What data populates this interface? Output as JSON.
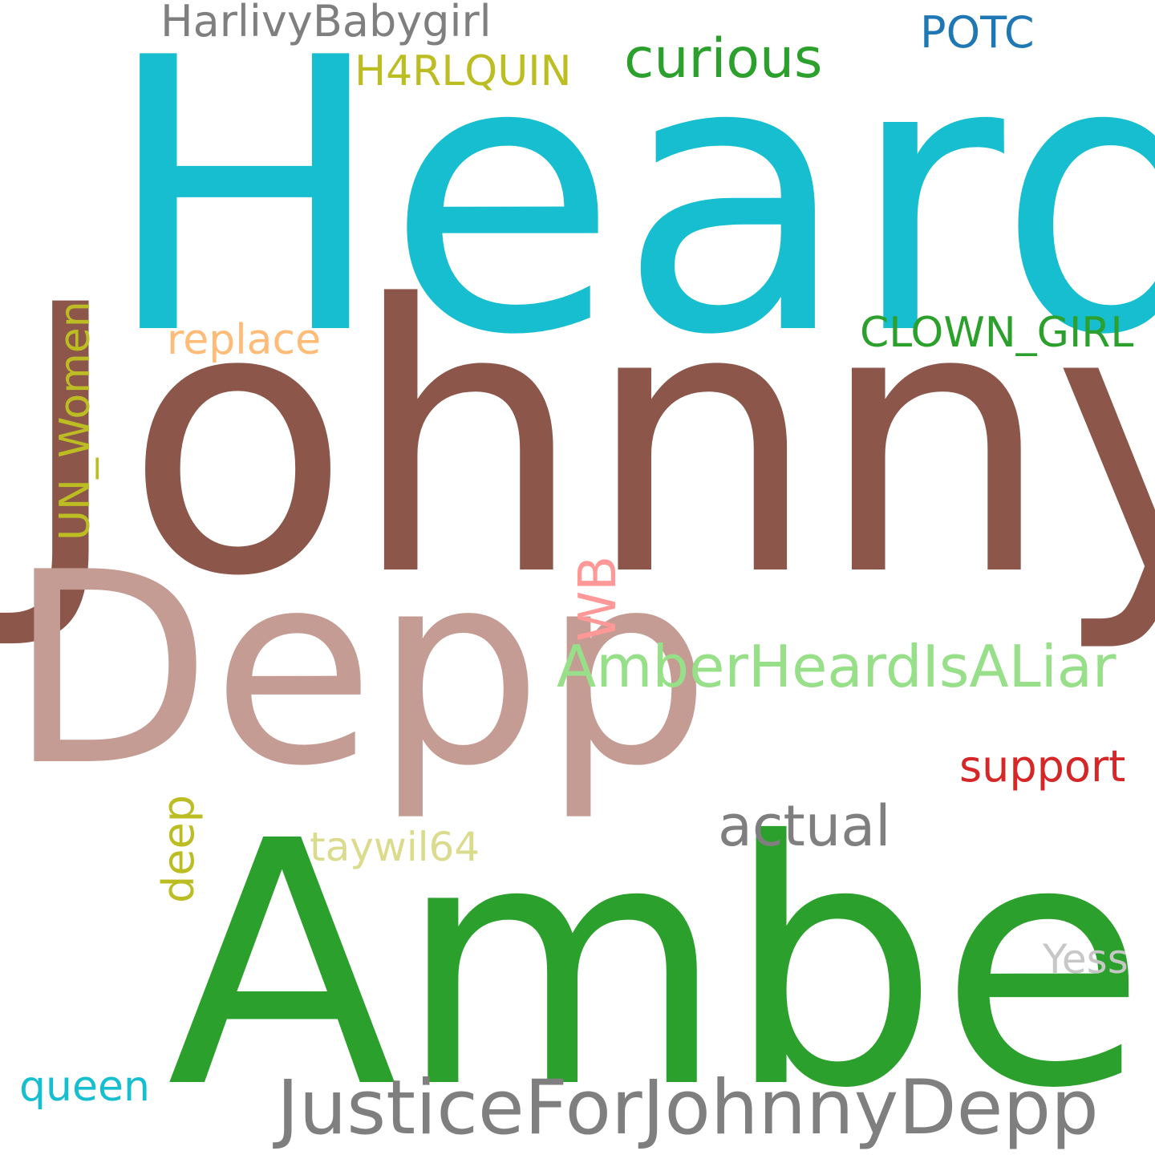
{
  "words": [
    {
      "id": "heard",
      "text": "Heard",
      "color": "#17becf",
      "orientation": "horizontal"
    },
    {
      "id": "johnny",
      "text": "Johnny",
      "color": "#8c564b",
      "orientation": "horizontal"
    },
    {
      "id": "depp",
      "text": "Depp",
      "color": "#c49c94",
      "orientation": "horizontal"
    },
    {
      "id": "amber",
      "text": "Amber",
      "color": "#2ca02c",
      "orientation": "horizontal"
    },
    {
      "id": "justice",
      "text": "JusticeForJohnnyDepp",
      "color": "#7f7f7f",
      "orientation": "horizontal"
    },
    {
      "id": "amberliar",
      "text": "AmberHeardIsALiar",
      "color": "#98df8a",
      "orientation": "horizontal"
    },
    {
      "id": "harlivy",
      "text": "HarlivyBabygirl",
      "color": "#7f7f7f",
      "orientation": "horizontal"
    },
    {
      "id": "h4rl",
      "text": "H4RLQUIN",
      "color": "#bcbd22",
      "orientation": "horizontal"
    },
    {
      "id": "curious",
      "text": "curious",
      "color": "#2ca02c",
      "orientation": "horizontal"
    },
    {
      "id": "potc",
      "text": "POTC",
      "color": "#1f77b4",
      "orientation": "horizontal"
    },
    {
      "id": "clown",
      "text": "CLOWN_GIRL",
      "color": "#2ca02c",
      "orientation": "horizontal"
    },
    {
      "id": "replace",
      "text": "replace",
      "color": "#ffbb78",
      "orientation": "horizontal"
    },
    {
      "id": "actual",
      "text": "actual",
      "color": "#7f7f7f",
      "orientation": "horizontal"
    },
    {
      "id": "support",
      "text": "support",
      "color": "#d62728",
      "orientation": "horizontal"
    },
    {
      "id": "taywil",
      "text": "taywil64",
      "color": "#dbdb8d",
      "orientation": "horizontal"
    },
    {
      "id": "yess",
      "text": "Yess",
      "color": "#c7c7c7",
      "orientation": "horizontal"
    },
    {
      "id": "queen",
      "text": "queen",
      "color": "#17becf",
      "orientation": "horizontal"
    },
    {
      "id": "unwomen",
      "text": "UN_Women",
      "color": "#bcbd22",
      "orientation": "vertical"
    },
    {
      "id": "wb",
      "text": "WB",
      "color": "#ff9896",
      "orientation": "vertical"
    },
    {
      "id": "deep",
      "text": "deep",
      "color": "#bcbd22",
      "orientation": "vertical"
    }
  ]
}
